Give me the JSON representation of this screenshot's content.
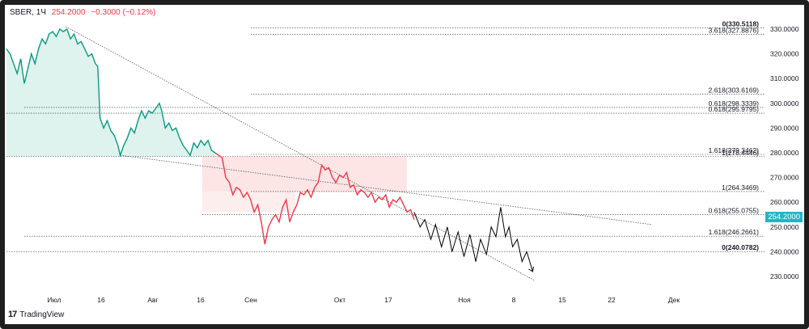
{
  "header": {
    "symbol": "SBER, 1Ч",
    "price": "254.2000",
    "change": "−0.3000 (−0.12%)"
  },
  "brand": {
    "logo": "17",
    "name": "TradingView"
  },
  "last_price_tag": "254.2000",
  "colors": {
    "up": "#089981",
    "down": "#f23645",
    "tag": "#22b5c9",
    "projection": "#000000"
  },
  "chart_data": {
    "type": "line",
    "title": "SBER, 1Ч",
    "ylim": [
      225,
      335
    ],
    "y_ticks": [
      "330.0000",
      "320.0000",
      "310.0000",
      "300.0000",
      "290.0000",
      "280.0000",
      "270.0000",
      "260.0000",
      "250.0000",
      "240.0000",
      "230.0000"
    ],
    "x_ticks": [
      "Июл",
      "16",
      "Авг",
      "16",
      "Сен",
      "Окт",
      "17",
      "Ноя",
      "8",
      "15",
      "22",
      "Дек"
    ],
    "fib_levels": [
      {
        "label": "0(330.5118)",
        "value": 330.5118
      },
      {
        "label": "3.618(327.8876)",
        "value": 327.8876
      },
      {
        "label": "2.618(303.6169)",
        "value": 303.6169
      },
      {
        "label": "0.618(298.3339)",
        "value": 298.3339
      },
      {
        "label": "0.618(295.9795)",
        "value": 295.9795
      },
      {
        "label": "1.618(279.3462)",
        "value": 279.3462
      },
      {
        "label": "1(278.4446)",
        "value": 278.4446
      },
      {
        "label": "1(264.3469)",
        "value": 264.3469
      },
      {
        "label": "0.618(255.0755)",
        "value": 255.0755
      },
      {
        "label": "1.618(246.2661)",
        "value": 246.2661
      },
      {
        "label": "0(240.0782)",
        "value": 240.0782
      }
    ],
    "series": [
      {
        "values": [
          [
            0,
            322
          ],
          [
            3,
            320
          ],
          [
            6,
            316
          ],
          [
            9,
            312
          ],
          [
            12,
            318
          ],
          [
            15,
            308
          ],
          [
            18,
            314
          ],
          [
            21,
            320
          ],
          [
            24,
            316
          ],
          [
            27,
            322
          ],
          [
            30,
            326
          ],
          [
            33,
            324
          ],
          [
            36,
            328
          ],
          [
            39,
            329
          ],
          [
            42,
            327
          ],
          [
            45,
            330
          ],
          [
            48,
            329
          ],
          [
            51,
            330
          ],
          [
            54,
            326
          ],
          [
            57,
            328
          ],
          [
            60,
            324
          ],
          [
            63,
            325
          ],
          [
            66,
            322
          ],
          [
            69,
            319
          ],
          [
            72,
            320
          ],
          [
            75,
            316
          ],
          [
            77,
            315
          ],
          [
            79,
            294
          ],
          [
            82,
            290
          ],
          [
            85,
            293
          ],
          [
            88,
            289
          ],
          [
            91,
            287
          ],
          [
            94,
            283
          ],
          [
            96,
            279
          ],
          [
            99,
            283
          ],
          [
            102,
            286
          ],
          [
            105,
            290
          ],
          [
            108,
            288
          ],
          [
            111,
            293
          ],
          [
            114,
            297
          ],
          [
            117,
            294
          ],
          [
            120,
            297
          ],
          [
            123,
            296
          ],
          [
            126,
            298
          ],
          [
            129,
            300
          ],
          [
            131,
            297
          ],
          [
            134,
            290
          ],
          [
            137,
            292
          ],
          [
            140,
            289
          ],
          [
            143,
            290
          ],
          [
            146,
            286
          ],
          [
            149,
            283
          ],
          [
            152,
            281
          ],
          [
            155,
            279
          ],
          [
            158,
            284
          ],
          [
            161,
            282
          ],
          [
            164,
            285
          ],
          [
            167,
            283
          ],
          [
            170,
            285
          ],
          [
            173,
            281
          ],
          [
            176,
            280
          ]
        ]
      },
      {
        "values": [
          [
            176,
            280
          ],
          [
            179,
            279
          ],
          [
            182,
            278
          ],
          [
            185,
            270
          ],
          [
            188,
            268
          ],
          [
            191,
            263
          ],
          [
            194,
            266
          ],
          [
            197,
            265
          ],
          [
            200,
            262
          ],
          [
            203,
            264
          ],
          [
            206,
            261
          ],
          [
            209,
            256
          ],
          [
            212,
            259
          ],
          [
            215,
            252
          ],
          [
            218,
            243
          ],
          [
            221,
            250
          ],
          [
            224,
            253
          ],
          [
            227,
            255
          ],
          [
            230,
            252
          ],
          [
            233,
            258
          ],
          [
            236,
            261
          ],
          [
            239,
            252
          ],
          [
            242,
            256
          ],
          [
            245,
            259
          ],
          [
            248,
            264
          ],
          [
            251,
            263
          ],
          [
            254,
            265
          ],
          [
            257,
            262
          ],
          [
            260,
            266
          ],
          [
            263,
            268
          ],
          [
            266,
            275
          ],
          [
            269,
            273
          ],
          [
            272,
            274
          ],
          [
            275,
            270
          ],
          [
            278,
            268
          ],
          [
            281,
            271
          ],
          [
            284,
            270
          ],
          [
            287,
            272
          ],
          [
            290,
            266
          ],
          [
            293,
            267
          ],
          [
            296,
            263
          ],
          [
            299,
            265
          ],
          [
            302,
            264
          ],
          [
            305,
            262
          ],
          [
            308,
            264
          ],
          [
            311,
            260
          ],
          [
            314,
            262
          ],
          [
            317,
            261
          ],
          [
            320,
            263
          ],
          [
            323,
            258
          ],
          [
            326,
            261
          ],
          [
            329,
            260
          ],
          [
            332,
            262
          ],
          [
            335,
            259
          ],
          [
            338,
            256
          ],
          [
            341,
            257
          ],
          [
            344,
            253
          ]
        ]
      },
      {
        "values": [
          [
            344,
            256
          ],
          [
            349,
            250
          ],
          [
            353,
            253
          ],
          [
            358,
            245
          ],
          [
            362,
            251
          ],
          [
            367,
            242
          ],
          [
            372,
            250
          ],
          [
            376,
            240
          ],
          [
            381,
            248
          ],
          [
            386,
            238
          ],
          [
            391,
            247
          ],
          [
            396,
            236
          ],
          [
            400,
            245
          ],
          [
            405,
            239
          ],
          [
            409,
            250
          ],
          [
            413,
            246
          ],
          [
            417,
            258
          ],
          [
            421,
            246
          ],
          [
            424,
            250
          ],
          [
            427,
            242
          ],
          [
            431,
            245
          ],
          [
            435,
            236
          ],
          [
            439,
            240
          ],
          [
            444,
            232
          ]
        ]
      }
    ]
  }
}
